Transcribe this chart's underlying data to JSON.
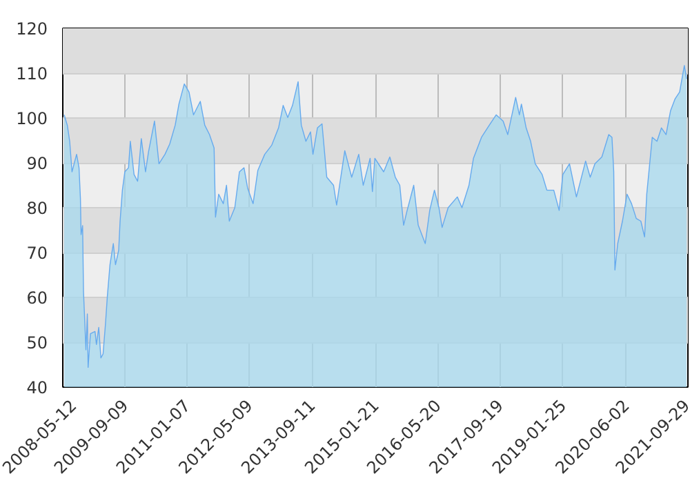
{
  "chart_data": {
    "type": "area",
    "xlim": [
      "2008-05-12",
      "2021-09-29"
    ],
    "xticks": [
      "2008-05-12",
      "2009-09-09",
      "2011-01-07",
      "2012-05-09",
      "2013-09-11",
      "2015-01-21",
      "2016-05-20",
      "2017-09-19",
      "2019-01-25",
      "2020-06-02",
      "2021-09-29"
    ],
    "ylim": [
      40,
      120
    ],
    "yticks": [
      40,
      50,
      60,
      70,
      80,
      90,
      100,
      110,
      120
    ],
    "grid": true,
    "x": [
      "2008-05-23",
      "2008-06-17",
      "2008-07-05",
      "2008-07-23",
      "2008-08-28",
      "2008-09-16",
      "2008-09-27",
      "2008-10-02",
      "2008-10-14",
      "2008-10-21",
      "2008-11-09",
      "2008-11-20",
      "2008-11-26",
      "2008-12-14",
      "2009-01-19",
      "2009-01-30",
      "2009-02-17",
      "2009-03-06",
      "2009-03-23",
      "2009-04-11",
      "2009-04-25",
      "2009-05-16",
      "2009-06-11",
      "2009-06-28",
      "2009-07-23",
      "2009-08-03",
      "2009-08-21",
      "2009-09-09",
      "2009-10-08",
      "2009-10-22",
      "2009-11-20",
      "2009-12-18",
      "2010-01-16",
      "2010-02-18",
      "2010-03-13",
      "2010-04-29",
      "2010-06-03",
      "2010-07-20",
      "2010-08-26",
      "2010-10-08",
      "2010-11-06",
      "2010-12-18",
      "2011-01-24",
      "2011-02-28",
      "2011-04-22",
      "2011-05-27",
      "2011-07-03",
      "2011-08-08",
      "2011-08-19",
      "2011-09-13",
      "2011-10-19",
      "2011-11-13",
      "2011-12-05",
      "2012-01-17",
      "2012-02-22",
      "2012-03-29",
      "2012-04-26",
      "2012-06-08",
      "2012-07-15",
      "2012-09-07",
      "2012-10-31",
      "2012-12-24",
      "2013-01-29",
      "2013-03-06",
      "2013-04-12",
      "2013-05-26",
      "2013-06-20",
      "2013-07-26",
      "2013-08-31",
      "2013-09-19",
      "2013-10-24",
      "2013-11-29",
      "2014-01-05",
      "2014-02-27",
      "2014-03-23",
      "2014-05-26",
      "2014-07-19",
      "2014-09-12",
      "2014-10-17",
      "2014-12-10",
      "2014-12-28",
      "2015-01-16",
      "2015-03-26",
      "2015-05-13",
      "2015-06-25",
      "2015-07-30",
      "2015-08-29",
      "2015-09-23",
      "2015-11-16",
      "2015-12-21",
      "2016-02-14",
      "2016-03-20",
      "2016-04-26",
      "2016-05-31",
      "2016-06-25",
      "2016-08-11",
      "2016-10-22",
      "2016-11-27",
      "2017-01-21",
      "2017-02-25",
      "2017-04-29",
      "2017-06-29",
      "2017-08-22",
      "2017-10-15",
      "2017-11-20",
      "2018-01-21",
      "2018-02-19",
      "2018-03-07",
      "2018-04-13",
      "2018-05-18",
      "2018-06-23",
      "2018-08-16",
      "2018-09-22",
      "2018-11-15",
      "2018-12-27",
      "2019-01-25",
      "2019-03-18",
      "2019-05-11",
      "2019-07-22",
      "2019-08-27",
      "2019-10-03",
      "2019-11-26",
      "2020-01-19",
      "2020-02-13",
      "2020-02-27",
      "2020-03-07",
      "2020-03-29",
      "2020-05-05",
      "2020-06-10",
      "2020-07-15",
      "2020-08-21",
      "2020-09-26",
      "2020-10-25",
      "2020-11-11",
      "2020-12-24",
      "2021-01-30",
      "2021-03-06",
      "2021-04-11",
      "2021-05-16",
      "2021-06-21",
      "2021-07-26",
      "2021-09-01",
      "2021-09-18"
    ],
    "series": [
      {
        "color": "#66aaee",
        "values": [
          100.7,
          98.3,
          94.8,
          88,
          91.9,
          88.9,
          82,
          74,
          76,
          61.3,
          48.3,
          56.3,
          44.4,
          51.9,
          52.4,
          49.5,
          53.3,
          46.5,
          47.4,
          54.2,
          60.1,
          67.3,
          72,
          67.3,
          70.5,
          77,
          83.9,
          88,
          88.9,
          94.8,
          87.4,
          85.9,
          95.4,
          88,
          92.4,
          99.3,
          89.8,
          91.9,
          94.2,
          98.4,
          103.1,
          107.6,
          105.8,
          100.7,
          103.7,
          98.4,
          96.3,
          93.3,
          77.9,
          83,
          80.9,
          85,
          77,
          80,
          88,
          88.9,
          84.4,
          80.9,
          88.3,
          91.9,
          93.9,
          97.8,
          102.8,
          100.1,
          102.8,
          108.1,
          98.4,
          94.8,
          96.9,
          91.9,
          97.8,
          98.7,
          86.8,
          85,
          80.6,
          92.7,
          86.8,
          91.9,
          85,
          91,
          83.6,
          91,
          88,
          91.3,
          86.8,
          85,
          76.1,
          79.1,
          85,
          76.1,
          72,
          79.4,
          83.9,
          80,
          75.6,
          80,
          82.4,
          80,
          85,
          91,
          95.7,
          98.4,
          100.7,
          99.3,
          96.3,
          104.6,
          100.7,
          103.1,
          97.8,
          94.8,
          89.8,
          87.4,
          83.9,
          83.9,
          79.4,
          87.4,
          89.8,
          82.4,
          90.4,
          86.8,
          89.8,
          91.3,
          96.3,
          95.7,
          88,
          66.1,
          72,
          77,
          83,
          80.9,
          77.6,
          77,
          73.5,
          83,
          95.7,
          94.8,
          97.8,
          96.3,
          101.6,
          104.3,
          105.8,
          111.7,
          108.7
        ]
      }
    ]
  }
}
